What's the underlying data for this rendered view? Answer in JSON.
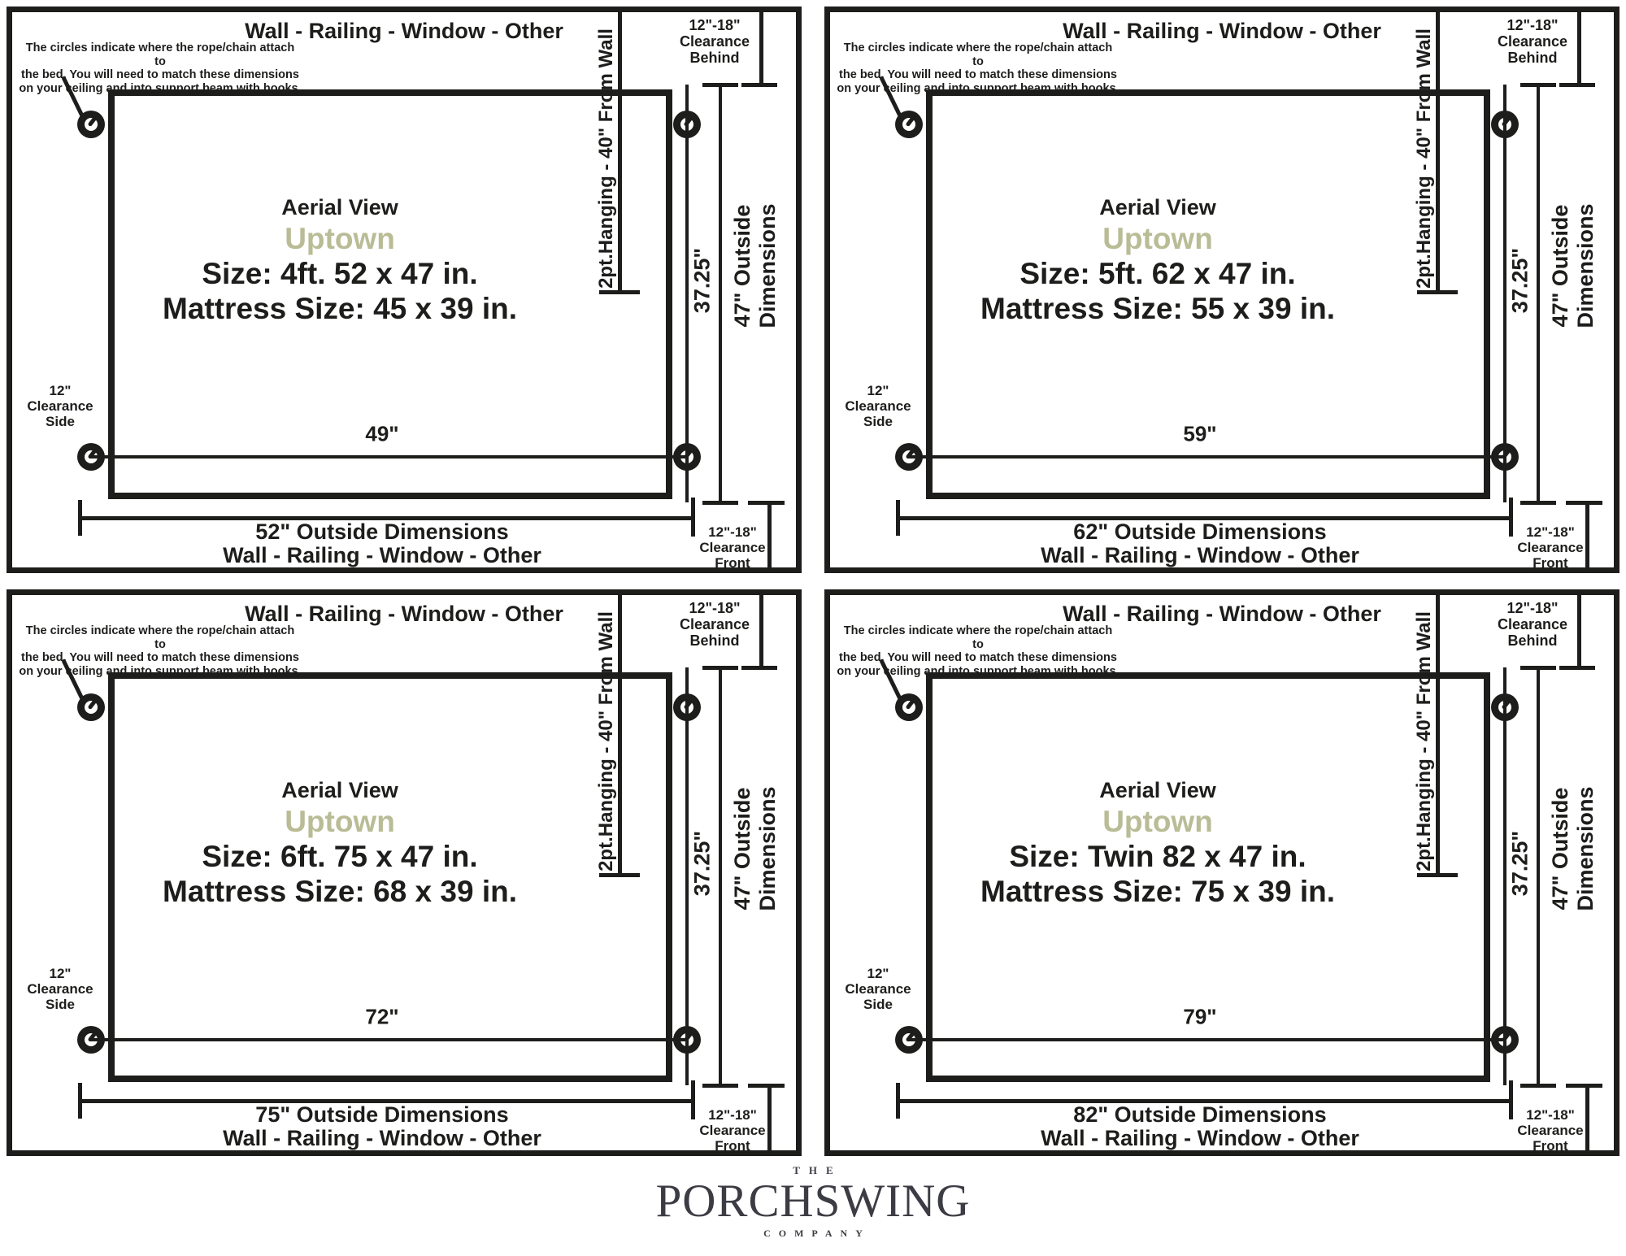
{
  "shared": {
    "top_wall_label": "Wall - Railing - Window - Other",
    "note_line1": "The circles indicate where the rope/chain attach to",
    "note_line2": "the bed. You will need to match these dimensions",
    "note_line3": "on your ceiling and into support beam with hooks.",
    "aerial_view_label": "Aerial View",
    "model_name": "Uptown",
    "hanging_label": "2pt.Hanging - 40\" From Wall",
    "depth_dim_label": "37.25\"",
    "outside_depth_line1": "47\" Outside",
    "outside_depth_line2": "Dimensions",
    "clearance_behind_line1": "12\"-18\"",
    "clearance_behind_line2": "Clearance",
    "clearance_behind_line3": "Behind",
    "clearance_side_line1": "12\"",
    "clearance_side_line2": "Clearance",
    "clearance_side_line3": "Side",
    "clearance_front_line1": "12\"-18\"",
    "clearance_front_line2": "Clearance",
    "clearance_front_line3": "Front",
    "bottom_wall_label": "Wall - Railing - Window - Other"
  },
  "panels": [
    {
      "size_label": "Size: 4ft. 52 x 47 in.",
      "mattress_label": "Mattress Size: 45 x 39 in.",
      "attach_width_label": "49\"",
      "outside_width_label": "52\" Outside Dimensions"
    },
    {
      "size_label": "Size: 5ft. 62 x 47 in.",
      "mattress_label": "Mattress Size: 55 x 39 in.",
      "attach_width_label": "59\"",
      "outside_width_label": "62\" Outside Dimensions"
    },
    {
      "size_label": "Size: 6ft. 75 x 47 in.",
      "mattress_label": "Mattress Size: 68 x 39 in.",
      "attach_width_label": "72\"",
      "outside_width_label": "75\" Outside Dimensions"
    },
    {
      "size_label": "Size: Twin 82 x 47 in.",
      "mattress_label": "Mattress Size: 75 x 39 in.",
      "attach_width_label": "79\"",
      "outside_width_label": "82\" Outside Dimensions"
    }
  ],
  "footer": {
    "brand_top": "THE",
    "brand_name": "PORCHSWING",
    "brand_bottom": "COMPANY"
  },
  "colors": {
    "line": "#1d1d1b",
    "model_accent": "#b9bc95",
    "logo_text": "#3c3c44"
  }
}
